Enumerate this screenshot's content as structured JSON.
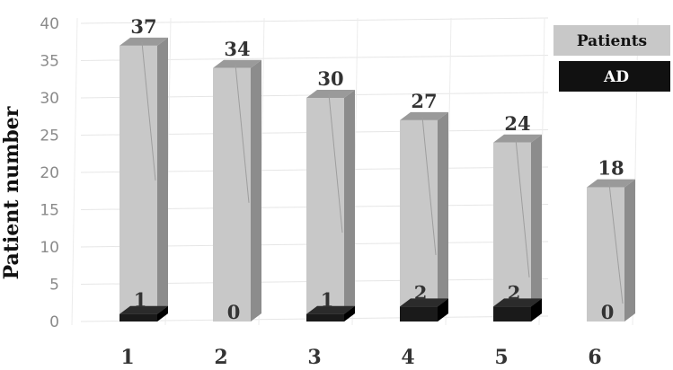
{
  "chart_data": {
    "type": "bar",
    "categories": [
      "1",
      "2",
      "3",
      "4",
      "5",
      "6"
    ],
    "series": [
      {
        "name": "Patients",
        "values": [
          37,
          34,
          30,
          27,
          24,
          18
        ],
        "color": "#c8c8c8"
      },
      {
        "name": "AD",
        "values": [
          1,
          0,
          1,
          2,
          2,
          0
        ],
        "color": "#1a1a1a"
      }
    ],
    "bar_value_labels": [
      "37",
      "34",
      "30",
      "27",
      "24",
      "18"
    ],
    "ad_value_labels": [
      "1",
      "0",
      "1",
      "2",
      "2",
      "0"
    ],
    "ylabel": "Patient number",
    "xlabel": "",
    "ylim": [
      0,
      40
    ],
    "yticks": [
      "0",
      "5",
      "10",
      "15",
      "20",
      "25",
      "30",
      "35",
      "40"
    ],
    "grid": true,
    "legend_position": "top-right",
    "style": "3d-bar"
  }
}
